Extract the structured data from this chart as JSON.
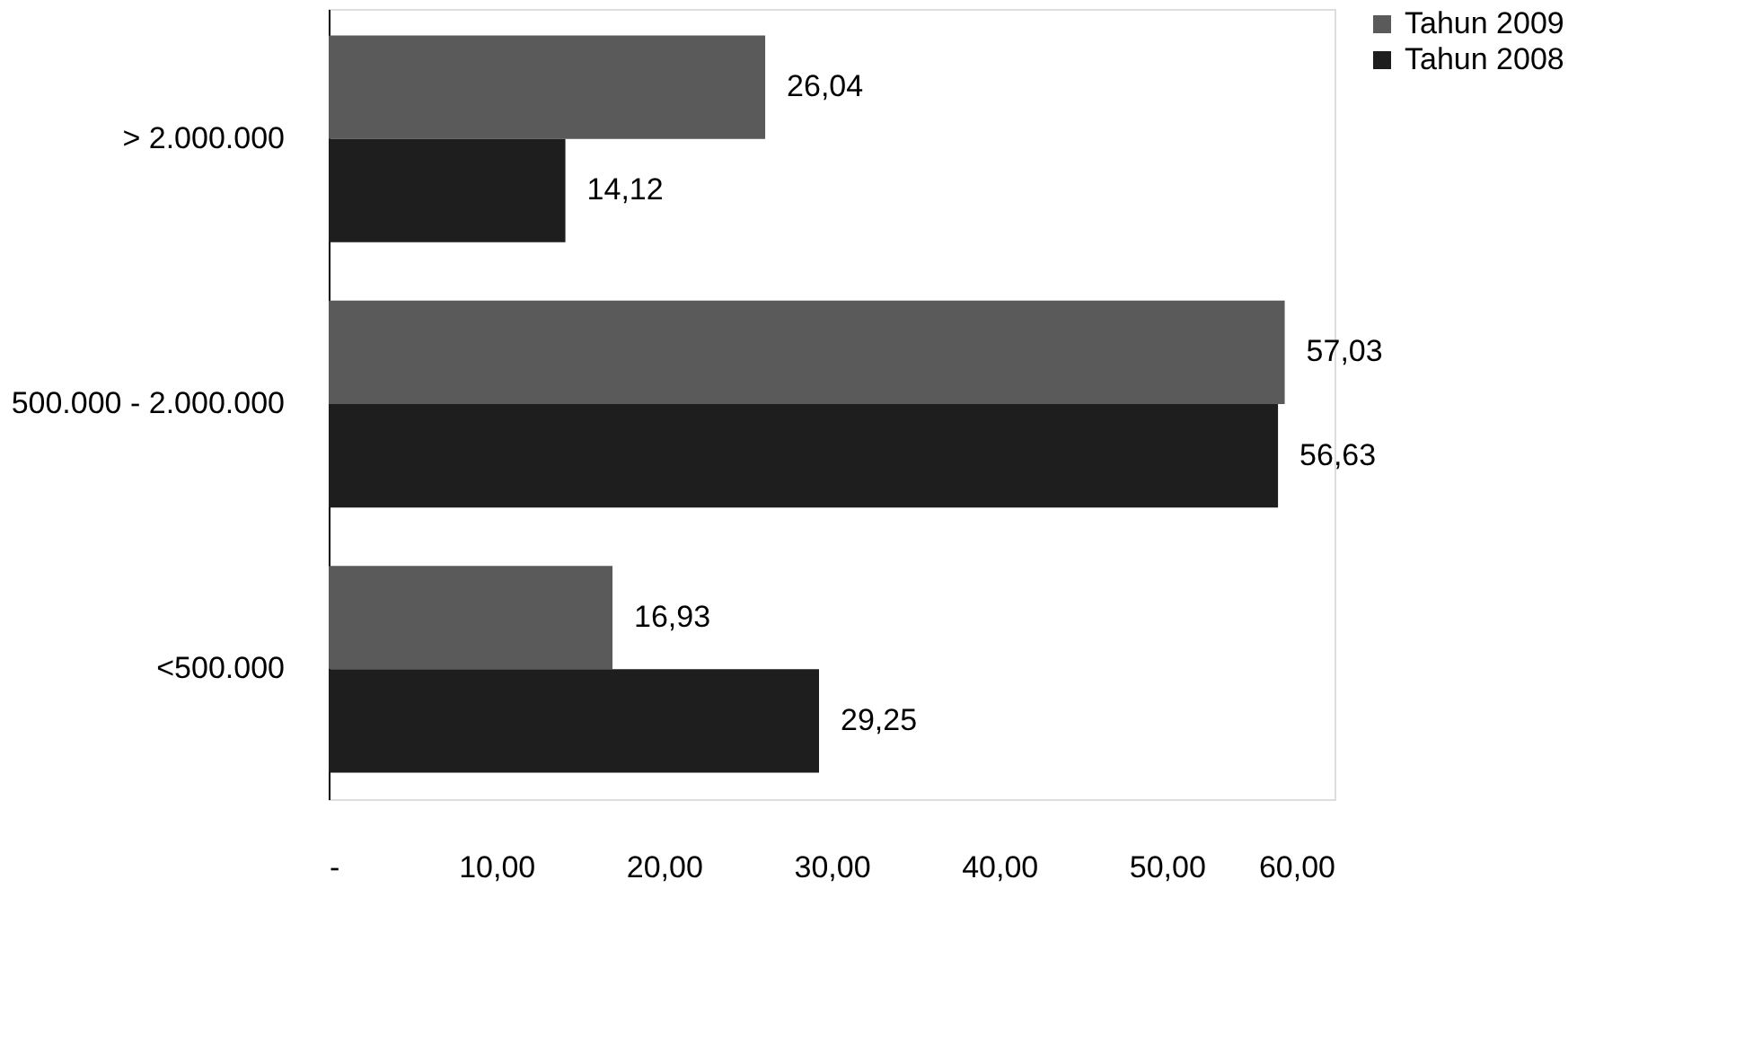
{
  "chart_data": {
    "type": "bar",
    "orientation": "horizontal",
    "categories": [
      "> 2.000.000",
      "500.000 - 2.000.000",
      "<500.000"
    ],
    "series": [
      {
        "name": "Tahun 2009",
        "color": "#5a5a5a",
        "values": [
          26.04,
          57.03,
          16.93
        ],
        "value_labels": [
          "26,04",
          "57,03",
          "16,93"
        ]
      },
      {
        "name": "Tahun 2008",
        "color": "#1e1e1e",
        "values": [
          14.12,
          56.63,
          29.25
        ],
        "value_labels": [
          "14,12",
          "56,63",
          "29,25"
        ]
      }
    ],
    "xlim": [
      0,
      60
    ],
    "xticks": [
      {
        "value": 0,
        "label": "-"
      },
      {
        "value": 10,
        "label": "10,00"
      },
      {
        "value": 20,
        "label": "20,00"
      },
      {
        "value": 30,
        "label": "30,00"
      },
      {
        "value": 40,
        "label": "40,00"
      },
      {
        "value": 50,
        "label": "50,00"
      },
      {
        "value": 60,
        "label": "60,00"
      }
    ],
    "grid": false,
    "legend": "right"
  }
}
